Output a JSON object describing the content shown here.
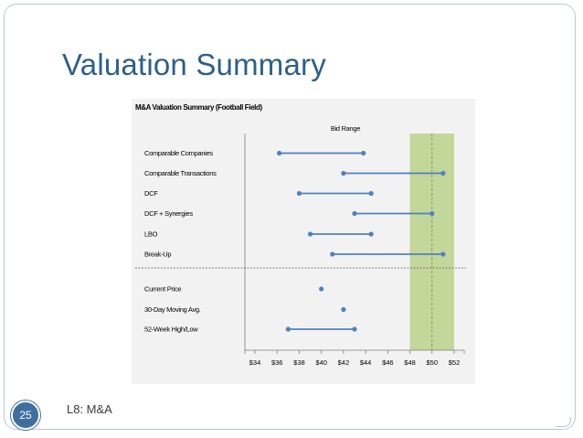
{
  "slide": {
    "title": "Valuation Summary",
    "page_number": "25",
    "footer": "L8: M&A"
  },
  "colors": {
    "title": "#2e5f8a",
    "series": "#4f81bd",
    "band": "#c4d79b",
    "band_line": "#77933c"
  },
  "chart_data": {
    "type": "range",
    "title": "M&A Valuation Summary (Football Field)",
    "subtitle": "Bid Range",
    "xlim": [
      34,
      52
    ],
    "x_ticks": [
      34,
      36,
      38,
      40,
      42,
      44,
      46,
      48,
      50,
      52
    ],
    "x_tick_labels": [
      "$34",
      "$36",
      "$38",
      "$40",
      "$42",
      "$44",
      "$46",
      "$48",
      "$50",
      "$52"
    ],
    "bid_range": {
      "low": 48,
      "high": 52,
      "mid": 50
    },
    "rows": [
      {
        "label": "Comparable Companies",
        "low": 36.2,
        "high": 43.8
      },
      {
        "label": "Comparable Transactions",
        "low": 42.0,
        "high": 51.0
      },
      {
        "label": "DCF",
        "low": 38.0,
        "high": 44.5
      },
      {
        "label": "DCF + Synergies",
        "low": 43.0,
        "high": 50.0
      },
      {
        "label": "LBO",
        "low": 39.0,
        "high": 44.5
      },
      {
        "label": "Break-Up",
        "low": 41.0,
        "high": 51.0
      },
      {
        "label": "Current Price",
        "low": 40.0,
        "high": 40.0
      },
      {
        "label": "30-Day Moving Avg.",
        "low": 42.0,
        "high": 42.0
      },
      {
        "label": "52-Week High/Low",
        "low": 37.0,
        "high": 43.0
      }
    ]
  }
}
